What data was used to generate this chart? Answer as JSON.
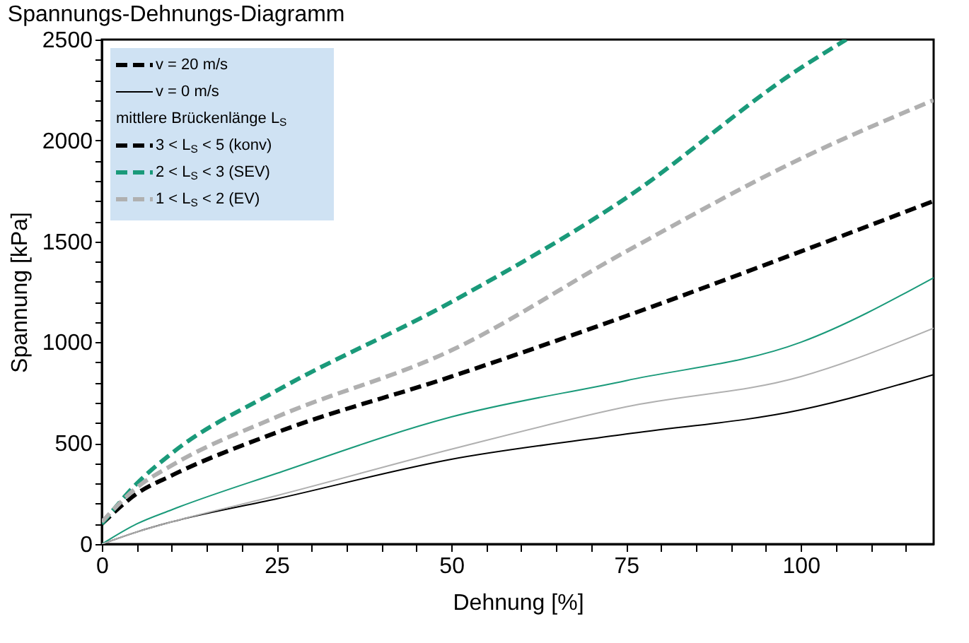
{
  "chart_data": {
    "type": "line",
    "title": "Spannungs-Dehnungs-Diagramm",
    "xlabel": "Dehnung [%]",
    "ylabel": "Spannung [kPa]",
    "legend_title": "mittlere Brückenlänge L$_{S}$",
    "annotations": [
      "v = 20 m/s",
      "v = 0 m/s"
    ],
    "x": [
      0,
      5,
      10,
      25,
      50,
      75,
      100,
      119
    ],
    "series": [
      {
        "name": "3 < L$_{S}$ < 5  (konv)",
        "color": "#000000",
        "line_style": "dashed",
        "values": [
          100,
          250,
          340,
          553,
          830,
          1130,
          1450,
          1700
        ]
      },
      {
        "name": "2 < L$_{S}$ < 3  (SEV)",
        "color": "#1a9a7a",
        "line_style": "dashed",
        "x": [
          0,
          5,
          10,
          25,
          50,
          75,
          100,
          106.5
        ],
        "values": [
          100,
          300,
          450,
          760,
          1200,
          1715,
          2360,
          2500
        ]
      },
      {
        "name": "1 < L$_{S}$ < 2  (EV)",
        "color": "#b0b0b0",
        "line_style": "dashed",
        "values": [
          110,
          280,
          390,
          630,
          960,
          1450,
          1910,
          2200
        ]
      },
      {
        "color": "#000000",
        "line_style": "solid",
        "values": [
          0,
          60,
          110,
          224,
          420,
          545,
          665,
          840
        ]
      },
      {
        "color": "#1a9a7a",
        "line_style": "solid",
        "values": [
          0,
          100,
          170,
          350,
          630,
          810,
          1000,
          1320
        ]
      },
      {
        "color": "#b0b0b0",
        "line_style": "solid",
        "values": [
          0,
          60,
          110,
          240,
          470,
          680,
          830,
          1070
        ]
      }
    ],
    "xlim": [
      0,
      119
    ],
    "ylim": [
      0,
      2500
    ],
    "xticks": [
      0,
      {
        "value": 5,
        "label": null
      },
      {
        "value": 10,
        "label": null
      },
      {
        "value": 15,
        "label": null
      },
      {
        "value": 20,
        "label": null
      },
      25,
      {
        "value": 30,
        "label": null
      },
      {
        "value": 35,
        "label": null
      },
      {
        "value": 40,
        "label": null
      },
      {
        "value": 45,
        "label": null
      },
      50,
      {
        "value": 55,
        "label": null
      },
      {
        "value": 60,
        "label": null
      },
      {
        "value": 65,
        "label": null
      },
      {
        "value": 70,
        "label": null
      },
      75,
      {
        "value": 80,
        "label": null
      },
      {
        "value": 85,
        "label": null
      },
      {
        "value": 90,
        "label": null
      },
      {
        "value": 95,
        "label": null
      },
      100,
      {
        "value": 105,
        "label": null
      },
      {
        "value": 110,
        "label": null
      },
      {
        "value": 115,
        "label": null
      }
    ],
    "yticks": [
      0,
      {
        "value": 100,
        "label": null
      },
      {
        "value": 200,
        "label": null
      },
      {
        "value": 300,
        "label": null
      },
      {
        "value": 400,
        "label": null
      },
      500,
      {
        "value": 600,
        "label": null
      },
      {
        "value": 700,
        "label": null
      },
      {
        "value": 800,
        "label": null
      },
      {
        "value": 900,
        "label": null
      },
      1000,
      {
        "value": 1100,
        "label": null
      },
      {
        "value": 1200,
        "label": null
      },
      {
        "value": 1300,
        "label": null
      },
      {
        "value": 1400,
        "label": null
      },
      1500,
      {
        "value": 1600,
        "label": null
      },
      {
        "value": 1700,
        "label": null
      },
      {
        "value": 1800,
        "label": null
      },
      {
        "value": 1900,
        "label": null
      },
      2000,
      {
        "value": 2100,
        "label": null
      },
      {
        "value": 2200,
        "label": null
      },
      {
        "value": 2300,
        "label": null
      },
      {
        "value": 2400,
        "label": null
      },
      2500
    ],
    "grid": false,
    "legend": "top left",
    "marker": "none"
  }
}
